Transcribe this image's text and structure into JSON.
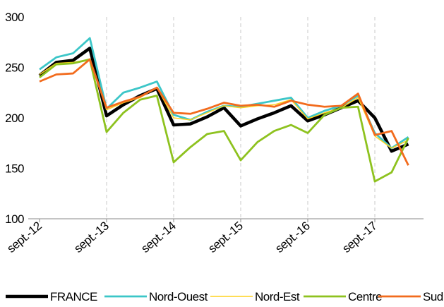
{
  "chart_data": {
    "type": "line",
    "categories": [
      "sept.-12",
      null,
      null,
      null,
      "sept.-13",
      null,
      null,
      null,
      "sept.-14",
      null,
      null,
      null,
      "sept.-15",
      null,
      null,
      null,
      "sept.-16",
      null,
      null,
      null,
      "sept.-17",
      null,
      null
    ],
    "series": [
      {
        "name": "FRANCE",
        "color": "#000000",
        "values": [
          242,
          255,
          257,
          269,
          202,
          213,
          222,
          229,
          193,
          194,
          201,
          210,
          192,
          199,
          205,
          212,
          197,
          203,
          210,
          217,
          200,
          167,
          174
        ]
      },
      {
        "name": "Nord-Ouest",
        "color": "#3cc6c8",
        "values": [
          248,
          260,
          264,
          279,
          209,
          225,
          230,
          236,
          203,
          198,
          206,
          212,
          211,
          214,
          217,
          220,
          200,
          207,
          212,
          222,
          185,
          170,
          181
        ]
      },
      {
        "name": "Nord-Est",
        "color": "#ffd21f",
        "values": [
          243,
          254,
          255,
          258,
          208,
          215,
          220,
          230,
          200,
          198,
          205,
          212,
          210,
          212,
          213,
          218,
          199,
          205,
          210,
          220,
          182,
          170,
          178
        ]
      },
      {
        "name": "Centre",
        "color": "#8ec21f",
        "values": [
          240,
          253,
          254,
          258,
          186,
          205,
          218,
          222,
          156,
          171,
          184,
          187,
          158,
          176,
          187,
          193,
          185,
          203,
          210,
          211,
          137,
          146,
          180
        ]
      },
      {
        "name": "Sud",
        "color": "#f26b1d",
        "values": [
          236,
          243,
          244,
          258,
          210,
          216,
          221,
          230,
          205,
          204,
          209,
          215,
          212,
          213,
          211,
          217,
          213,
          211,
          212,
          224,
          183,
          187,
          153
        ]
      }
    ],
    "ylim": [
      100,
      300
    ],
    "yticks": [
      100,
      150,
      200,
      250,
      300
    ],
    "grid": true
  }
}
